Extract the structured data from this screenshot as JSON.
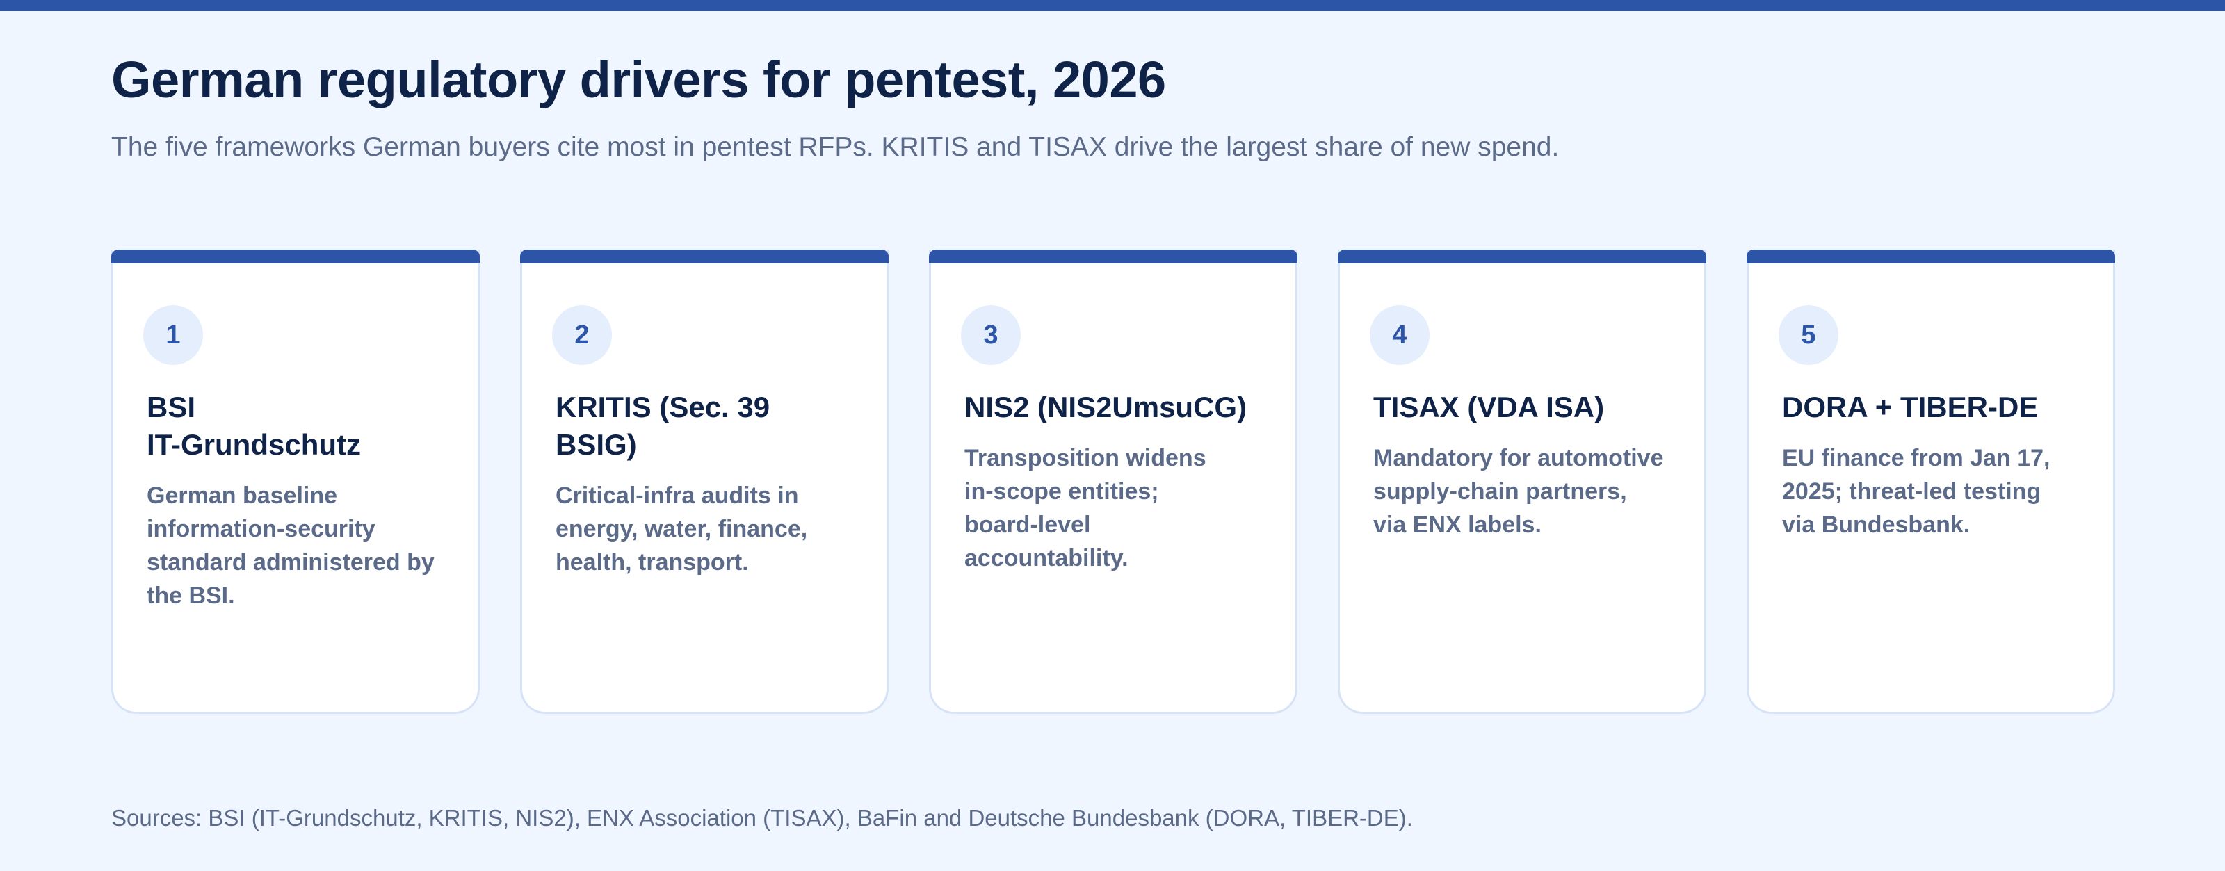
{
  "header": {
    "title": "German regulatory drivers for pentest, 2026",
    "subtitle": "The five frameworks German buyers cite most in pentest RFPs. KRITIS and TISAX drive the largest share of new spend."
  },
  "cards": [
    {
      "number": "1",
      "heading": [
        "BSI",
        "IT-Grundschutz"
      ],
      "body": [
        "German baseline",
        "information-security",
        "standard administered by",
        "the BSI."
      ]
    },
    {
      "number": "2",
      "heading": [
        "KRITIS (Sec. 39",
        "BSIG)"
      ],
      "body": [
        "Critical-infra audits in",
        "energy, water, finance,",
        "health, transport."
      ]
    },
    {
      "number": "3",
      "heading": [
        "NIS2 (NIS2UmsuCG)"
      ],
      "body": [
        "Transposition widens",
        "in-scope entities;",
        "board-level",
        "accountability."
      ]
    },
    {
      "number": "4",
      "heading": [
        "TISAX (VDA ISA)"
      ],
      "body": [
        "Mandatory for automotive",
        "supply-chain partners,",
        "via ENX labels."
      ]
    },
    {
      "number": "5",
      "heading": [
        "DORA + TIBER-DE"
      ],
      "body": [
        "EU finance from Jan 17,",
        "2025; threat-led testing",
        "via Bundesbank."
      ]
    }
  ],
  "footer": {
    "sources": "Sources: BSI (IT-Grundschutz, KRITIS, NIS2), ENX Association (TISAX), BaFin and Deutsche Bundesbank (DORA, TIBER-DE)."
  }
}
